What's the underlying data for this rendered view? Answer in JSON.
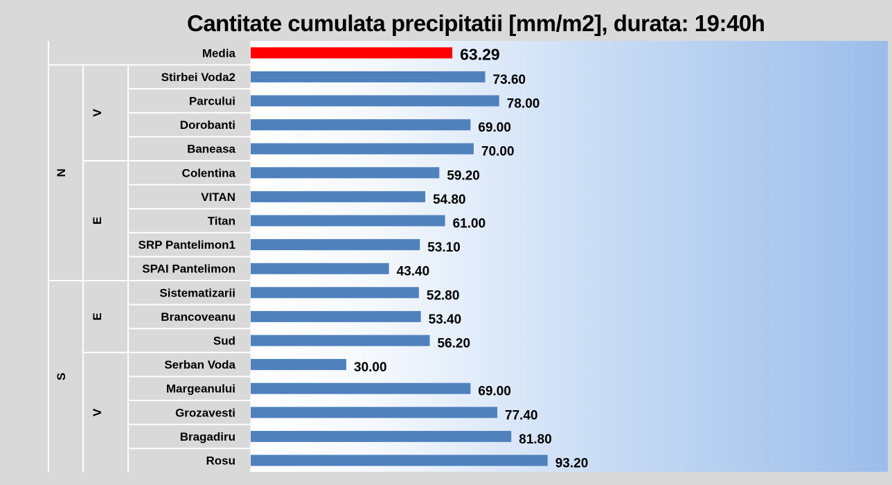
{
  "chart_data": {
    "type": "bar",
    "orientation": "horizontal",
    "title": "Cantitate cumulata precipitatii [mm/m2], durata: 19:40h",
    "categories": [
      "Media",
      "Stirbei Voda2",
      "Parcului",
      "Dorobanti",
      "Baneasa",
      "Colentina",
      "VITAN",
      "Titan",
      "SRP Pantelimon1",
      "SPAI Pantelimon",
      "Sistematizarii",
      "Brancoveanu",
      "Sud",
      "Serban Voda",
      "Margeanului",
      "Grozavesti",
      "Bragadiru",
      "Rosu"
    ],
    "values": [
      63.29,
      73.6,
      78.0,
      69.0,
      70.0,
      59.2,
      54.8,
      61.0,
      53.1,
      43.4,
      52.8,
      53.4,
      56.2,
      30.0,
      69.0,
      77.4,
      81.8,
      93.2
    ],
    "value_labels": [
      "63.29",
      "73.60",
      "78.00",
      "69.00",
      "70.00",
      "59.20",
      "54.80",
      "61.00",
      "53.10",
      "43.40",
      "52.80",
      "53.40",
      "56.20",
      "30.00",
      "69.00",
      "77.40",
      "81.80",
      "93.20"
    ],
    "highlight_index": 0,
    "groups_outer": [
      {
        "label": "N",
        "start": 1,
        "end": 9
      },
      {
        "label": "S",
        "start": 10,
        "end": 17
      }
    ],
    "groups_inner": [
      {
        "label": "V",
        "start": 1,
        "end": 4
      },
      {
        "label": "E",
        "start": 5,
        "end": 9
      },
      {
        "label": "E",
        "start": 10,
        "end": 12
      },
      {
        "label": "V",
        "start": 13,
        "end": 17
      }
    ],
    "xlim": [
      0,
      200
    ],
    "grid": false,
    "legend": "none",
    "colors": {
      "bar": "#4f81bd",
      "highlight": "#ff0000",
      "separator": "#ffffff"
    }
  }
}
